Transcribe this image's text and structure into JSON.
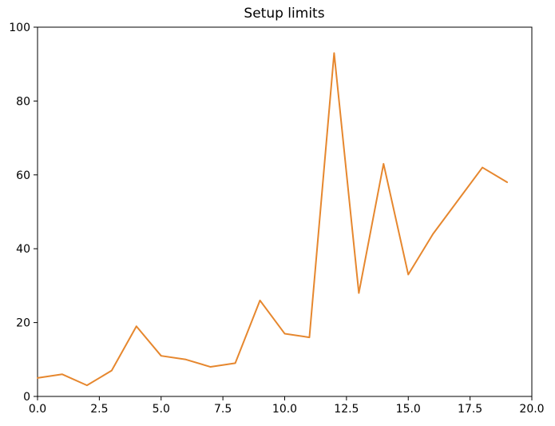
{
  "chart_data": {
    "type": "line",
    "title": "Setup limits",
    "xlabel": "",
    "ylabel": "",
    "xlim": [
      0,
      20
    ],
    "ylim": [
      0,
      100
    ],
    "xticks": [
      0,
      2.5,
      5,
      7.5,
      10,
      12.5,
      15,
      17.5,
      20
    ],
    "xtick_labels": [
      "0.0",
      "2.5",
      "5.0",
      "7.5",
      "10.0",
      "12.5",
      "15.0",
      "17.5",
      "20.0"
    ],
    "yticks": [
      0,
      20,
      40,
      60,
      80,
      100
    ],
    "ytick_labels": [
      "0",
      "20",
      "40",
      "60",
      "80",
      "100"
    ],
    "grid": false,
    "series": [
      {
        "color": "#e6872e",
        "x": [
          0,
          1,
          2,
          3,
          4,
          5,
          6,
          7,
          8,
          9,
          10,
          11,
          12,
          13,
          14,
          15,
          16,
          17,
          18,
          19
        ],
        "y": [
          5,
          6,
          3,
          7,
          19,
          11,
          10,
          8,
          9,
          26,
          17,
          16,
          93,
          28,
          63,
          33,
          44,
          53,
          62,
          58
        ]
      }
    ]
  }
}
